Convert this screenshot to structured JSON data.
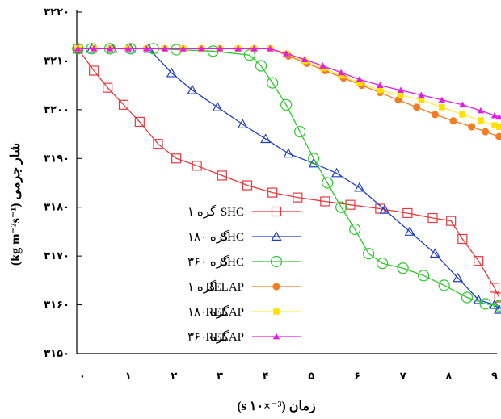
{
  "chart_data": {
    "type": "line",
    "xlabel": "زمان (s ۱۰×⁻³)",
    "ylabel": "شار جرمی (kg m⁻²s⁻¹)",
    "xlim": [
      0,
      9
    ],
    "ylim": [
      3150,
      3220
    ],
    "x_ticks": [
      0,
      1,
      2,
      3,
      4,
      5,
      6,
      7,
      8,
      9
    ],
    "x_tick_labels": [
      "۰",
      "۱",
      "۲",
      "۳",
      "۴",
      "۵",
      "۶",
      "۷",
      "۸",
      "۹"
    ],
    "y_ticks": [
      3150,
      3160,
      3170,
      3180,
      3190,
      3200,
      3210,
      3220
    ],
    "y_tick_labels": [
      "۳۱۵۰",
      "۳۱۶۰",
      "۳۱۷۰",
      "۳۱۸۰",
      "۳۱۹۰",
      "۳۲۰۰",
      "۳۲۱۰",
      "۳۲۲۰"
    ],
    "grid": false,
    "legend_position": "center-left",
    "series": [
      {
        "name": "SHC",
        "group": "گره ۱",
        "color": "#e8383d",
        "marker": "square",
        "points": [
          [
            -0.1,
            3212.5
          ],
          [
            0.25,
            3208
          ],
          [
            0.55,
            3204.5
          ],
          [
            0.9,
            3201
          ],
          [
            1.25,
            3197.5
          ],
          [
            1.65,
            3193
          ],
          [
            2.05,
            3190
          ],
          [
            2.5,
            3188.5
          ],
          [
            3.05,
            3186.5
          ],
          [
            3.6,
            3184.5
          ],
          [
            4.15,
            3183
          ],
          [
            4.7,
            3182
          ],
          [
            5.3,
            3181.2
          ],
          [
            5.85,
            3180.5
          ],
          [
            6.5,
            3179.7
          ],
          [
            7.1,
            3178.8
          ],
          [
            7.65,
            3177.8
          ],
          [
            8.05,
            3177.2
          ],
          [
            8.3,
            3173.5
          ],
          [
            8.65,
            3169
          ],
          [
            9.0,
            3163.5
          ],
          [
            9.1,
            3161.5
          ]
        ]
      },
      {
        "name": "SHC",
        "group": "گره ۱۸۰",
        "color": "#1f3fc7",
        "marker": "triangle",
        "points": [
          [
            -0.1,
            3212.5
          ],
          [
            0.2,
            3212.5
          ],
          [
            0.65,
            3212.5
          ],
          [
            1.05,
            3212.5
          ],
          [
            1.45,
            3212.5
          ],
          [
            1.95,
            3207.5
          ],
          [
            2.4,
            3204
          ],
          [
            2.95,
            3200.5
          ],
          [
            3.5,
            3197
          ],
          [
            4.0,
            3194
          ],
          [
            4.5,
            3191
          ],
          [
            5.05,
            3189
          ],
          [
            5.55,
            3187
          ],
          [
            6.05,
            3184
          ],
          [
            6.6,
            3179.5
          ],
          [
            7.15,
            3175
          ],
          [
            7.7,
            3170.5
          ],
          [
            8.2,
            3165.5
          ],
          [
            8.65,
            3161
          ],
          [
            9.0,
            3160
          ],
          [
            9.1,
            3159
          ]
        ]
      },
      {
        "name": "SHC",
        "group": "گره ۳۶۰",
        "color": "#2ec72e",
        "marker": "circle",
        "points": [
          [
            -0.1,
            3212.5
          ],
          [
            0.2,
            3212.5
          ],
          [
            0.6,
            3212.5
          ],
          [
            1.05,
            3212.5
          ],
          [
            1.55,
            3212.5
          ],
          [
            2.05,
            3212.3
          ],
          [
            2.85,
            3212
          ],
          [
            3.65,
            3211.2
          ],
          [
            3.9,
            3209
          ],
          [
            4.15,
            3205.5
          ],
          [
            4.45,
            3201
          ],
          [
            4.75,
            3195.5
          ],
          [
            5.05,
            3190
          ],
          [
            5.35,
            3185
          ],
          [
            5.65,
            3180
          ],
          [
            5.95,
            3175.5
          ],
          [
            6.25,
            3170.5
          ],
          [
            6.55,
            3168.5
          ],
          [
            7.0,
            3167.5
          ],
          [
            7.45,
            3166
          ],
          [
            7.9,
            3164
          ],
          [
            8.4,
            3161.5
          ],
          [
            8.8,
            3160.2
          ],
          [
            9.1,
            3159.8
          ]
        ]
      },
      {
        "name": "RELAP",
        "group": "گره ۱",
        "color": "#f47c20",
        "marker_color": "#f47c20",
        "marker": "octagon",
        "points": [
          [
            -0.1,
            3212.5
          ],
          [
            0.25,
            3212.5
          ],
          [
            0.6,
            3212.5
          ],
          [
            1.0,
            3212.5
          ],
          [
            1.4,
            3212.5
          ],
          [
            1.8,
            3212.5
          ],
          [
            2.2,
            3212.5
          ],
          [
            2.6,
            3212.5
          ],
          [
            3.0,
            3212.5
          ],
          [
            3.4,
            3212.5
          ],
          [
            3.75,
            3212.5
          ],
          [
            4.1,
            3212.5
          ],
          [
            4.5,
            3211
          ],
          [
            4.9,
            3209.5
          ],
          [
            5.3,
            3208
          ],
          [
            5.7,
            3206.5
          ],
          [
            6.1,
            3205
          ],
          [
            6.5,
            3203.5
          ],
          [
            6.9,
            3202
          ],
          [
            7.3,
            3200.5
          ],
          [
            7.7,
            3199
          ],
          [
            8.1,
            3197.7
          ],
          [
            8.5,
            3196.5
          ],
          [
            8.8,
            3195.5
          ],
          [
            9.1,
            3194.5
          ]
        ]
      },
      {
        "name": "RELAP",
        "group": "گره ۱۸۰",
        "color": "#ffee44",
        "marker_color": "#ffe000",
        "marker": "square-filled",
        "points": [
          [
            -0.1,
            3212.5
          ],
          [
            0.25,
            3212.5
          ],
          [
            0.6,
            3212.5
          ],
          [
            1.0,
            3212.5
          ],
          [
            1.4,
            3212.5
          ],
          [
            1.8,
            3212.5
          ],
          [
            2.2,
            3212.5
          ],
          [
            2.6,
            3212.5
          ],
          [
            3.0,
            3212.5
          ],
          [
            3.4,
            3212.5
          ],
          [
            3.75,
            3212.5
          ],
          [
            4.1,
            3212.5
          ],
          [
            4.45,
            3211.5
          ],
          [
            4.85,
            3210
          ],
          [
            5.25,
            3208.5
          ],
          [
            5.65,
            3207
          ],
          [
            6.05,
            3205.5
          ],
          [
            6.5,
            3204
          ],
          [
            6.95,
            3203
          ],
          [
            7.4,
            3202
          ],
          [
            7.85,
            3200.5
          ],
          [
            8.3,
            3199
          ],
          [
            8.7,
            3197.8
          ],
          [
            9.0,
            3196.8
          ],
          [
            9.1,
            3196.5
          ]
        ]
      },
      {
        "name": "RELAP",
        "group": "گره ۳۶۰",
        "color": "#e020e0",
        "marker_color": "#e020e0",
        "marker": "triangle-filled",
        "points": [
          [
            -0.1,
            3212.5
          ],
          [
            0.25,
            3212.5
          ],
          [
            0.6,
            3212.5
          ],
          [
            1.0,
            3212.5
          ],
          [
            1.4,
            3212.5
          ],
          [
            1.8,
            3212.5
          ],
          [
            2.2,
            3212.5
          ],
          [
            2.6,
            3212.5
          ],
          [
            3.0,
            3212.5
          ],
          [
            3.4,
            3212.5
          ],
          [
            3.75,
            3212.5
          ],
          [
            4.1,
            3212.5
          ],
          [
            4.45,
            3211.5
          ],
          [
            4.85,
            3210.3
          ],
          [
            5.25,
            3209
          ],
          [
            5.65,
            3207.6
          ],
          [
            6.05,
            3206.2
          ],
          [
            6.5,
            3205
          ],
          [
            6.95,
            3204
          ],
          [
            7.4,
            3203
          ],
          [
            7.85,
            3202
          ],
          [
            8.3,
            3201
          ],
          [
            8.7,
            3199.8
          ],
          [
            9.0,
            3198.8
          ],
          [
            9.1,
            3198.5
          ]
        ]
      }
    ]
  }
}
